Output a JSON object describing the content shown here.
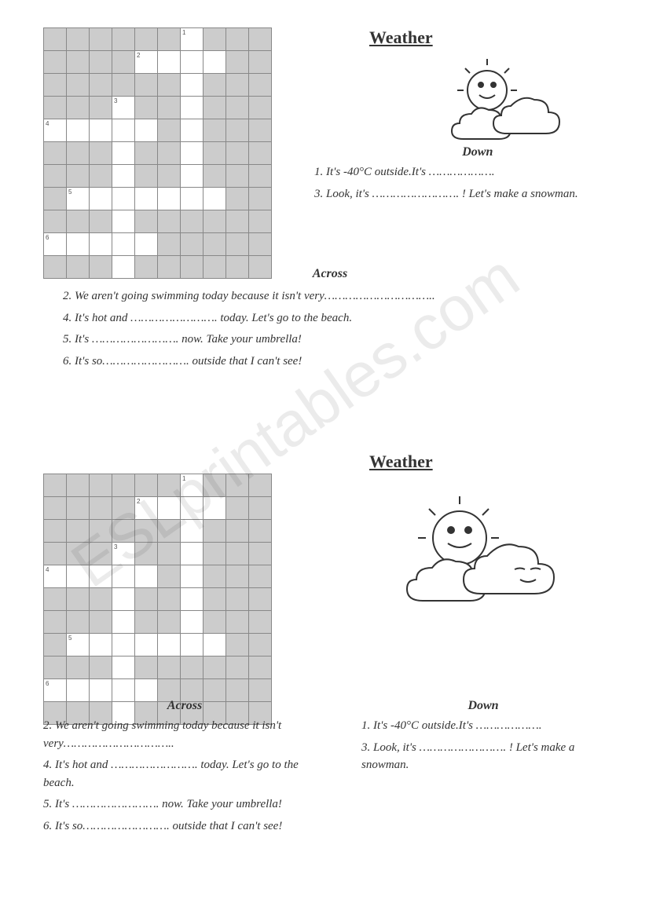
{
  "title": "Weather",
  "headings": {
    "down": "Down",
    "across": "Across"
  },
  "down_clues": [
    "1. It's -40°C outside.It's ……………….",
    "3. Look, it's ……………………. ! Let's make a snowman."
  ],
  "down_clues_wrapped": [
    "1. It's -40°C outside.It's ……………….",
    "3. Look, it's ……………………. ! Let's make a snowman."
  ],
  "across_clues": [
    "2. We aren't going swimming today because it isn't very…………………………..",
    "4. It's hot and ……………………. today. Let's go to the beach.",
    "5. It's ……………………. now. Take your umbrella!",
    "6. It's so……………………. outside that I can't see!"
  ],
  "across_clues_wrapped": [
    "2. We aren't going swimming today because it isn't very…………………………..",
    "4. It's hot and ……………………. today. Let's go to the beach.",
    "5. It's ……………………. now. Take your umbrella!",
    "6. It's so……………………. outside that I can't see!"
  ],
  "grid": {
    "rows": 11,
    "cols": 10,
    "white_cells": [
      [
        0,
        6,
        "1"
      ],
      [
        1,
        4,
        "2"
      ],
      [
        1,
        5,
        ""
      ],
      [
        1,
        6,
        ""
      ],
      [
        1,
        7,
        ""
      ],
      [
        2,
        6,
        ""
      ],
      [
        3,
        3,
        "3"
      ],
      [
        3,
        6,
        ""
      ],
      [
        4,
        0,
        "4"
      ],
      [
        4,
        1,
        ""
      ],
      [
        4,
        2,
        ""
      ],
      [
        4,
        3,
        ""
      ],
      [
        4,
        4,
        ""
      ],
      [
        4,
        6,
        ""
      ],
      [
        5,
        3,
        ""
      ],
      [
        5,
        6,
        ""
      ],
      [
        6,
        3,
        ""
      ],
      [
        6,
        6,
        ""
      ],
      [
        7,
        1,
        "5"
      ],
      [
        7,
        2,
        ""
      ],
      [
        7,
        3,
        ""
      ],
      [
        7,
        4,
        ""
      ],
      [
        7,
        5,
        ""
      ],
      [
        7,
        6,
        ""
      ],
      [
        7,
        7,
        ""
      ],
      [
        8,
        3,
        ""
      ],
      [
        9,
        0,
        "6"
      ],
      [
        9,
        1,
        ""
      ],
      [
        9,
        2,
        ""
      ],
      [
        9,
        3,
        ""
      ],
      [
        9,
        4,
        ""
      ],
      [
        10,
        3,
        ""
      ]
    ]
  },
  "watermark": "ESLprintables.com"
}
